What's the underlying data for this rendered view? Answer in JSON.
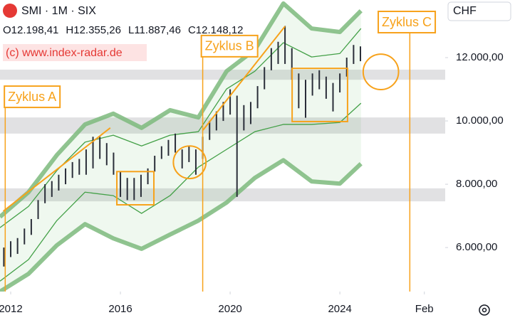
{
  "chart_data": {
    "type": "ohlc",
    "title": "SMI · 1M · SIX",
    "quote": [
      "O12.198,41",
      "H12.355,26",
      "L11.887,46",
      "C12.148,12"
    ],
    "watermark": "(c) www.index-radar.de",
    "currency": "CHF",
    "xlim": [
      2011.61,
      2027.84
    ],
    "ylim": [
      4610,
      13820
    ],
    "xticks": [
      2012,
      2016,
      2020,
      2024,
      {
        "value": 2027.08,
        "label": "Feb"
      }
    ],
    "yticks": [
      {
        "value": 6000,
        "label": "6.000,00"
      },
      {
        "value": 8000,
        "label": "8.000,00"
      },
      {
        "value": 10000,
        "label": "10.000,00"
      },
      {
        "value": 12000,
        "label": "12.000,00"
      }
    ],
    "color": "#2a2e39",
    "x": [
      2011.75,
      2012,
      2012.25,
      2012.5,
      2012.75,
      2013,
      2013.25,
      2013.5,
      2013.75,
      2014,
      2014.25,
      2014.5,
      2014.75,
      2015,
      2015.25,
      2015.5,
      2015.75,
      2016,
      2016.25,
      2016.5,
      2016.75,
      2017,
      2017.25,
      2017.5,
      2017.75,
      2018,
      2018.25,
      2018.5,
      2018.75,
      2019,
      2019.25,
      2019.5,
      2019.75,
      2020,
      2020.25,
      2020.5,
      2020.75,
      2021,
      2021.25,
      2021.5,
      2021.75,
      2022,
      2022.25,
      2022.5,
      2022.75,
      2023,
      2023.25,
      2023.5,
      2023.75,
      2024,
      2024.25,
      2024.5,
      2024.75
    ],
    "high": [
      6000,
      6200,
      6300,
      6600,
      6900,
      7500,
      8000,
      8100,
      8300,
      8500,
      8700,
      8800,
      9100,
      9500,
      9500,
      9300,
      9000,
      8400,
      8200,
      8200,
      8300,
      8500,
      8900,
      9200,
      9400,
      9600,
      9100,
      9200,
      9100,
      9500,
      10000,
      10300,
      10600,
      11000,
      10800,
      10500,
      10600,
      11100,
      11700,
      12300,
      12500,
      13000,
      12300,
      11500,
      11300,
      11500,
      11600,
      11400,
      11200,
      11500,
      12000,
      12400,
      12355
    ],
    "low": [
      5400,
      5700,
      5800,
      6100,
      6400,
      6900,
      7400,
      7600,
      7800,
      8000,
      8200,
      8300,
      8300,
      8500,
      8800,
      8600,
      8300,
      7600,
      7500,
      7500,
      7600,
      8000,
      8400,
      8800,
      8900,
      9000,
      8500,
      8700,
      8300,
      8800,
      9400,
      9700,
      10000,
      10200,
      7600,
      9700,
      9900,
      10400,
      11000,
      11600,
      11800,
      11800,
      11300,
      10400,
      10100,
      10800,
      11000,
      10700,
      10300,
      10900,
      11400,
      11800,
      11887
    ],
    "band_x": [
      2011.61,
      2012.65,
      2013.68,
      2014.71,
      2015.74,
      2016.77,
      2017.81,
      2018.84,
      2019.87,
      2020.9,
      2021.94,
      2022.97,
      2024.0,
      2024.77
    ],
    "bands": [
      [
        6970,
        7750,
        8920,
        9890,
        10230,
        9780,
        10340,
        10110,
        11570,
        12250,
        13710,
        12920,
        12810,
        13480
      ],
      [
        6630,
        7300,
        8430,
        9330,
        9550,
        9210,
        9550,
        9660,
        11010,
        11570,
        12470,
        12020,
        12130,
        12920
      ],
      [
        4940,
        5620,
        6850,
        7750,
        7640,
        7080,
        7640,
        8540,
        9100,
        9660,
        9890,
        9890,
        9950,
        10560
      ],
      [
        4610,
        5170,
        6070,
        6740,
        6290,
        5960,
        6410,
        6850,
        7420,
        8200,
        8760,
        8090,
        8020,
        8650
      ]
    ],
    "zones": [
      [
        11300,
        11620
      ],
      [
        9600,
        10110
      ],
      [
        7460,
        7870
      ]
    ],
    "boxes": [
      {
        "x": [
          2015.87,
          2017.22
        ],
        "y": [
          7350,
          8400
        ]
      },
      {
        "x": [
          2022.26,
          2024.28
        ],
        "y": [
          9980,
          11660
        ]
      }
    ],
    "circles": [
      {
        "x": [
          2017.93,
          2019.12
        ],
        "y": [
          8180,
          9210
        ]
      },
      {
        "x": [
          2024.85,
          2026.14
        ],
        "y": [
          10990,
          12110
        ]
      }
    ],
    "trendlines": [
      [
        [
          2011.73,
          7150
        ],
        [
          2015.63,
          9780
        ]
      ],
      [
        [
          2019.01,
          9710
        ],
        [
          2022.0,
          12990
        ]
      ]
    ],
    "cycles": [
      {
        "text": "Zyklus A",
        "x": 2011.8,
        "label_x": 2011.77,
        "y": 11100
      },
      {
        "text": "Zyklus B",
        "x": 2019.0,
        "label_x": 2018.95,
        "y": 12700
      },
      {
        "text": "Zyklus C",
        "x": 2026.55,
        "label_x": 2025.4,
        "y": 13460
      }
    ]
  }
}
